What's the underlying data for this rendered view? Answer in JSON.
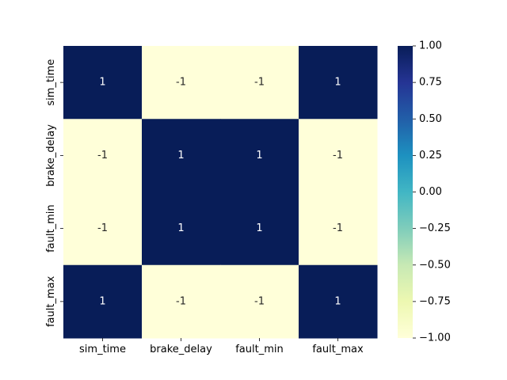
{
  "chart_data": {
    "type": "heatmap",
    "title": "",
    "xlabel": "",
    "ylabel": "",
    "x_categories": [
      "sim_time",
      "brake_delay",
      "fault_min",
      "fault_max"
    ],
    "y_categories": [
      "sim_time",
      "brake_delay",
      "fault_min",
      "fault_max"
    ],
    "values": [
      [
        1,
        -1,
        -1,
        1
      ],
      [
        -1,
        1,
        1,
        -1
      ],
      [
        -1,
        1,
        1,
        -1
      ],
      [
        1,
        -1,
        -1,
        1
      ]
    ],
    "annotations": [
      [
        "1",
        "-1",
        "-1",
        "1"
      ],
      [
        "-1",
        "1",
        "1",
        "-1"
      ],
      [
        "-1",
        "1",
        "1",
        "-1"
      ],
      [
        "1",
        "-1",
        "-1",
        "1"
      ]
    ],
    "colormap": "YlGnBu",
    "color_low": "#ffffd9",
    "color_high": "#081d58",
    "annotation_text_dark": "#262626",
    "annotation_text_light": "#ffffff",
    "colorbar": {
      "vmin": -1.0,
      "vmax": 1.0,
      "ticks": [
        1.0,
        0.75,
        0.5,
        0.25,
        0.0,
        -0.25,
        -0.5,
        -0.75,
        -1.0
      ],
      "tick_labels": [
        "1.00",
        "0.75",
        "0.50",
        "0.25",
        "0.00",
        "−0.25",
        "−0.50",
        "−0.75",
        "−1.00"
      ]
    }
  }
}
